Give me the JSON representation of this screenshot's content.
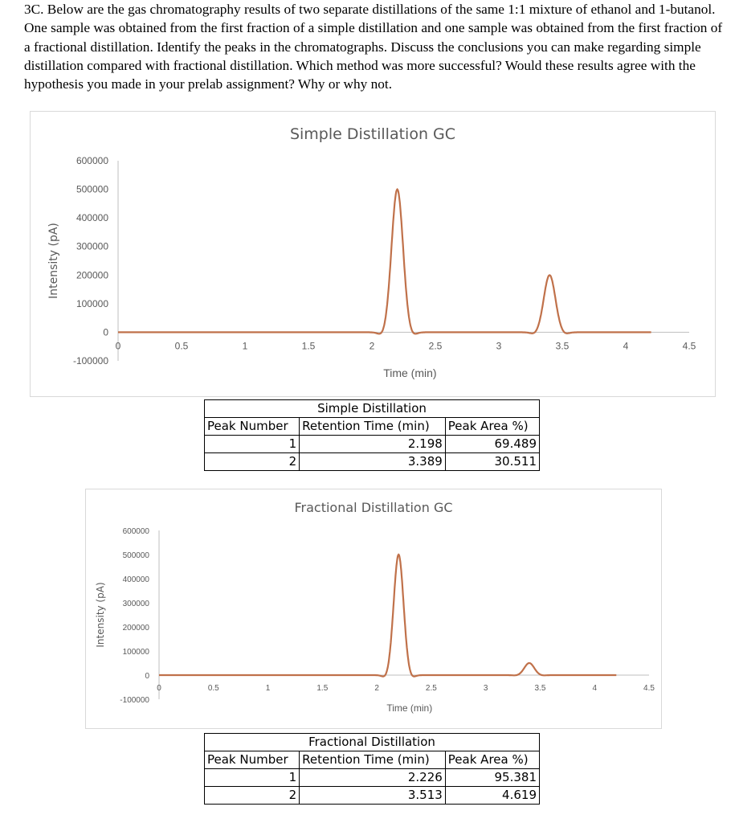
{
  "question": "3C. Below are the gas chromatography results of two separate distillations of the same 1:1 mixture of ethanol and 1-butanol. One sample was obtained from the first fraction of a simple distillation and one sample was obtained from the first fraction of a fractional distillation. Identify the peaks in the chromatographs.  Discuss the conclusions you can make regarding simple distillation compared with fractional distillation.  Which method was more successful? Would these results agree with the hypothesis you made in your prelab assignment?  Why or why not.",
  "chart_data": [
    {
      "type": "line",
      "title": "Simple Distillation GC",
      "xlabel": "Time (min)",
      "ylabel": "Intensity  (pA)",
      "xlim": [
        0,
        4.5
      ],
      "ylim": [
        -100000,
        600000
      ],
      "xticks": [
        "0",
        "0.5",
        "1",
        "1.5",
        "2",
        "2.5",
        "3",
        "3.5",
        "4",
        "4.5"
      ],
      "yticks": [
        "600000",
        "500000",
        "400000",
        "300000",
        "200000",
        "100000",
        "0",
        "-100000"
      ],
      "grid": false,
      "color": "#c0714a",
      "x_range": [
        0,
        4.2
      ],
      "peaks": [
        {
          "time": 2.2,
          "intensity": 500000
        },
        {
          "time": 3.4,
          "intensity": 200000
        }
      ]
    },
    {
      "type": "line",
      "title": "Fractional Distillation GC",
      "xlabel": "Time (min)",
      "ylabel": "Intensity (pA)",
      "xlim": [
        0,
        4.5
      ],
      "ylim": [
        -100000,
        600000
      ],
      "xticks": [
        "0",
        "0.5",
        "1",
        "1.5",
        "2",
        "2.5",
        "3",
        "3.5",
        "4",
        "4.5"
      ],
      "yticks": [
        "600000",
        "500000",
        "400000",
        "300000",
        "200000",
        "100000",
        "0",
        "-100000"
      ],
      "grid": false,
      "color": "#c0714a",
      "x_range": [
        0,
        4.2
      ],
      "peaks": [
        {
          "time": 2.2,
          "intensity": 500000
        },
        {
          "time": 3.4,
          "intensity": 50000
        }
      ]
    }
  ],
  "tables": [
    {
      "title": "Simple Distillation",
      "headers": [
        "Peak Number",
        "Retention Time (min)",
        "Peak Area %)"
      ],
      "rows": [
        [
          "1",
          "2.198",
          "69.489"
        ],
        [
          "2",
          "3.389",
          "30.511"
        ]
      ]
    },
    {
      "title": "Fractional Distillation",
      "headers": [
        "Peak Number",
        "Retention Time (min)",
        "Peak Area %)"
      ],
      "rows": [
        [
          "1",
          "2.226",
          "95.381"
        ],
        [
          "2",
          "3.513",
          "4.619"
        ]
      ]
    }
  ]
}
